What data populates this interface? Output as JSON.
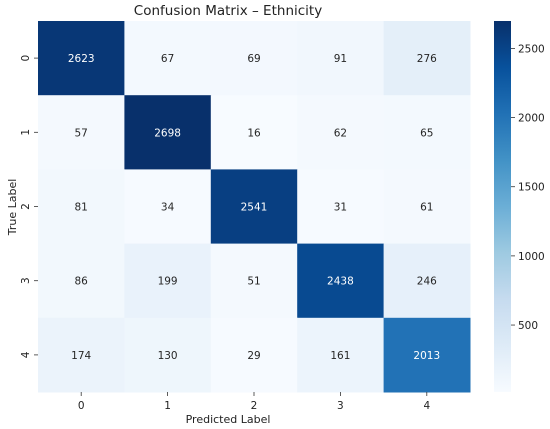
{
  "chart_data": {
    "type": "heatmap",
    "title": "Confusion Matrix – Ethnicity",
    "xlabel": "Predicted Label",
    "ylabel": "True Label",
    "x_categories": [
      "0",
      "1",
      "2",
      "3",
      "4"
    ],
    "y_categories": [
      "0",
      "1",
      "2",
      "3",
      "4"
    ],
    "values": [
      [
        2623,
        67,
        69,
        91,
        276
      ],
      [
        57,
        2698,
        16,
        62,
        65
      ],
      [
        81,
        34,
        2541,
        31,
        61
      ],
      [
        86,
        199,
        51,
        2438,
        246
      ],
      [
        174,
        130,
        29,
        161,
        2013
      ]
    ],
    "colormap": "Blues",
    "color_range": [
      16,
      2698
    ],
    "colorbar_ticks": [
      500,
      1000,
      1500,
      2000,
      2500
    ],
    "colors": {
      "low": "#f7fbff",
      "high": "#08306b"
    }
  }
}
